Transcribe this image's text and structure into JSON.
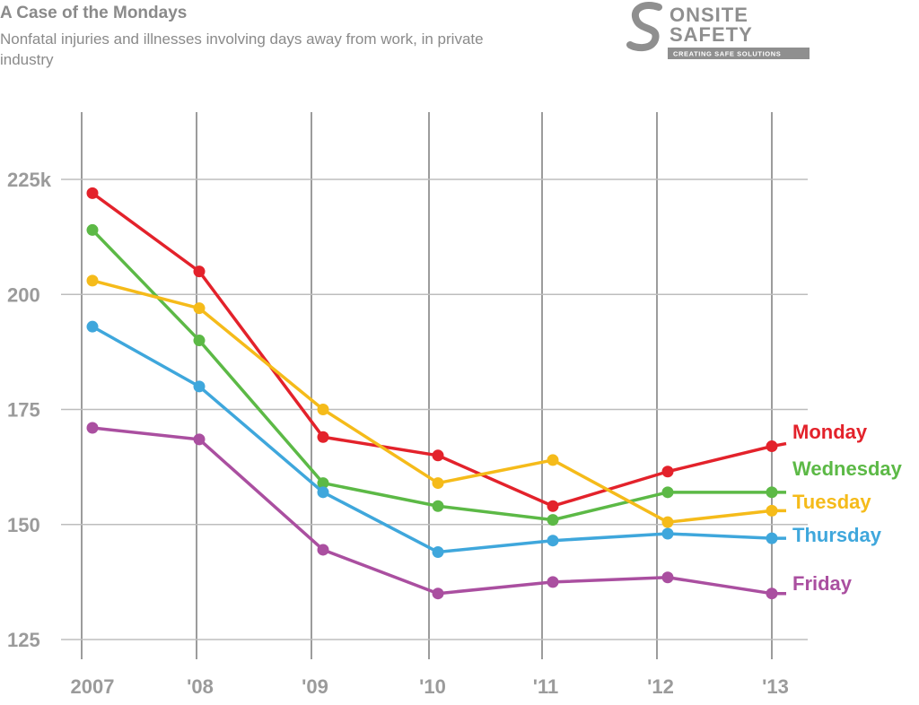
{
  "header": {
    "title": "A Case of the Mondays",
    "subtitle": "Nonfatal injuries and illnesses involving days away from work, in private industry"
  },
  "logo": {
    "line1": "ONSITE",
    "line2": "SAFETY",
    "tagline": "CREATING SAFE SOLUTIONS",
    "color": "#8f8f8f"
  },
  "chart_data": {
    "type": "line",
    "title": "A Case of the Mondays",
    "subtitle": "Nonfatal injuries and illnesses involving days away from work, in private industry",
    "xlabel": "",
    "ylabel": "",
    "categories": [
      "2007",
      "'08",
      "'09",
      "'10",
      "'11",
      "'12",
      "'13"
    ],
    "ylim": [
      125,
      240
    ],
    "yticks": [
      125,
      150,
      175,
      200,
      225
    ],
    "ytick_labels": [
      "125",
      "150",
      "175",
      "200",
      "225k"
    ],
    "grid": true,
    "legend": "direct labels at right end of lines",
    "series": [
      {
        "name": "Monday",
        "color": "#e3222b",
        "values": [
          222,
          205,
          169,
          165,
          154,
          161.5,
          167
        ]
      },
      {
        "name": "Wednesday",
        "color": "#5cb946",
        "values": [
          214,
          190,
          159,
          154,
          151,
          157,
          157
        ]
      },
      {
        "name": "Tuesday",
        "color": "#f5bb1a",
        "values": [
          203,
          197,
          175,
          159,
          164,
          150.5,
          153
        ]
      },
      {
        "name": "Thursday",
        "color": "#3fa7dc",
        "values": [
          193,
          180,
          157,
          144,
          146.5,
          148,
          147
        ]
      },
      {
        "name": "Friday",
        "color": "#aa4fa0",
        "values": [
          171,
          168.5,
          144.5,
          135,
          137.5,
          138.5,
          135
        ]
      }
    ]
  }
}
